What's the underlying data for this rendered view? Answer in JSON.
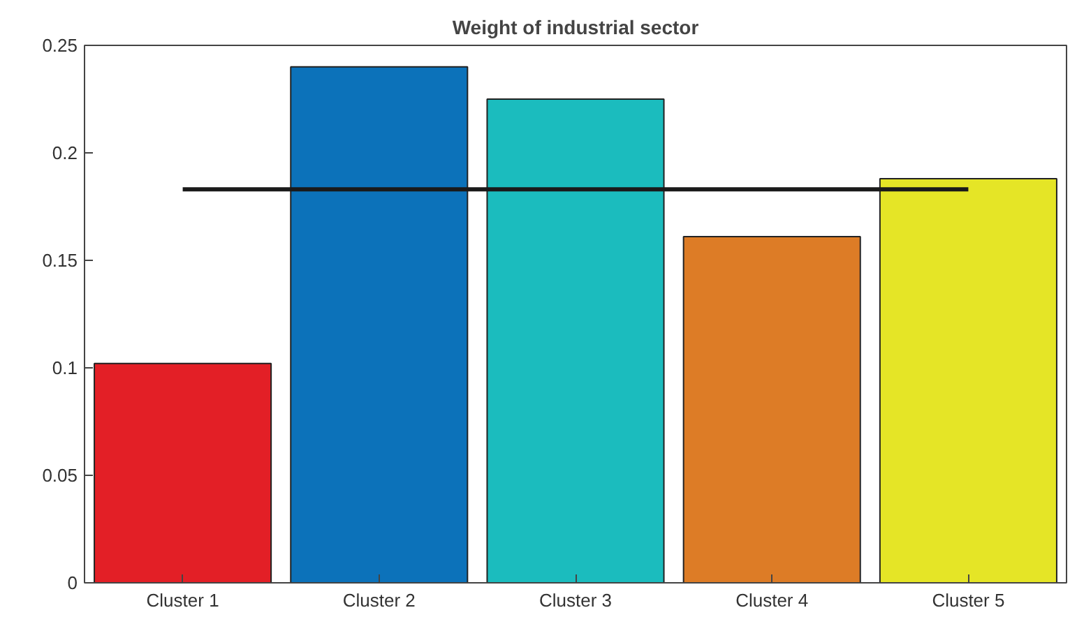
{
  "chart_data": {
    "type": "bar",
    "title": "Weight of industrial sector",
    "categories": [
      "Cluster 1",
      "Cluster 2",
      "Cluster 3",
      "Cluster 4",
      "Cluster 5"
    ],
    "values": [
      0.102,
      0.24,
      0.225,
      0.161,
      0.188
    ],
    "colors": [
      "#e31f26",
      "#0c72ba",
      "#1bbcbe",
      "#dd7c26",
      "#e5e526"
    ],
    "ylim": [
      0,
      0.25
    ],
    "yticks": [
      0,
      0.05,
      0.1,
      0.15,
      0.2,
      0.25
    ],
    "ref_lines": [
      {
        "axis": "y",
        "value": 0.183,
        "label": null,
        "color": "#1a1a1a"
      }
    ],
    "grid": false
  }
}
